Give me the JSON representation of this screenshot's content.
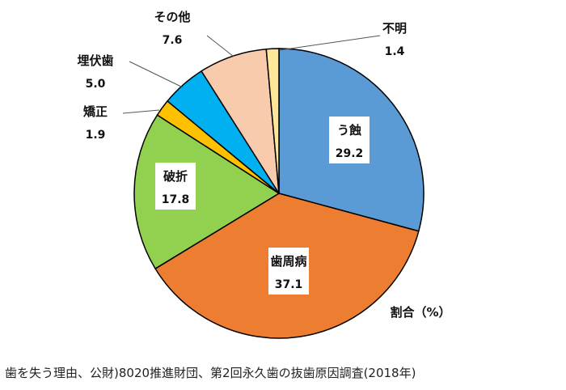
{
  "chart_data": {
    "type": "pie",
    "unit_label": "割合（%）",
    "start": "top",
    "direction": "clockwise",
    "slices": [
      {
        "label": "う蝕",
        "value": 29.2,
        "color": "#5B9BD5",
        "label_placement": "inside"
      },
      {
        "label": "歯周病",
        "value": 37.1,
        "color": "#ED7D31",
        "label_placement": "inside"
      },
      {
        "label": "破折",
        "value": 17.8,
        "color": "#92D050",
        "label_placement": "inside"
      },
      {
        "label": "矯正",
        "value": 1.9,
        "color": "#FFC000",
        "label_placement": "outside"
      },
      {
        "label": "埋伏歯",
        "value": 5.0,
        "color": "#00B0F0",
        "label_placement": "outside"
      },
      {
        "label": "その他",
        "value": 7.6,
        "color": "#F8CBAD",
        "label_placement": "outside"
      },
      {
        "label": "不明",
        "value": 1.4,
        "color": "#FFE699",
        "label_placement": "outside"
      }
    ]
  },
  "caption": "歯を失う理由、公財)8020推進財団、第2回永久歯の抜歯原因調査(2018年)"
}
